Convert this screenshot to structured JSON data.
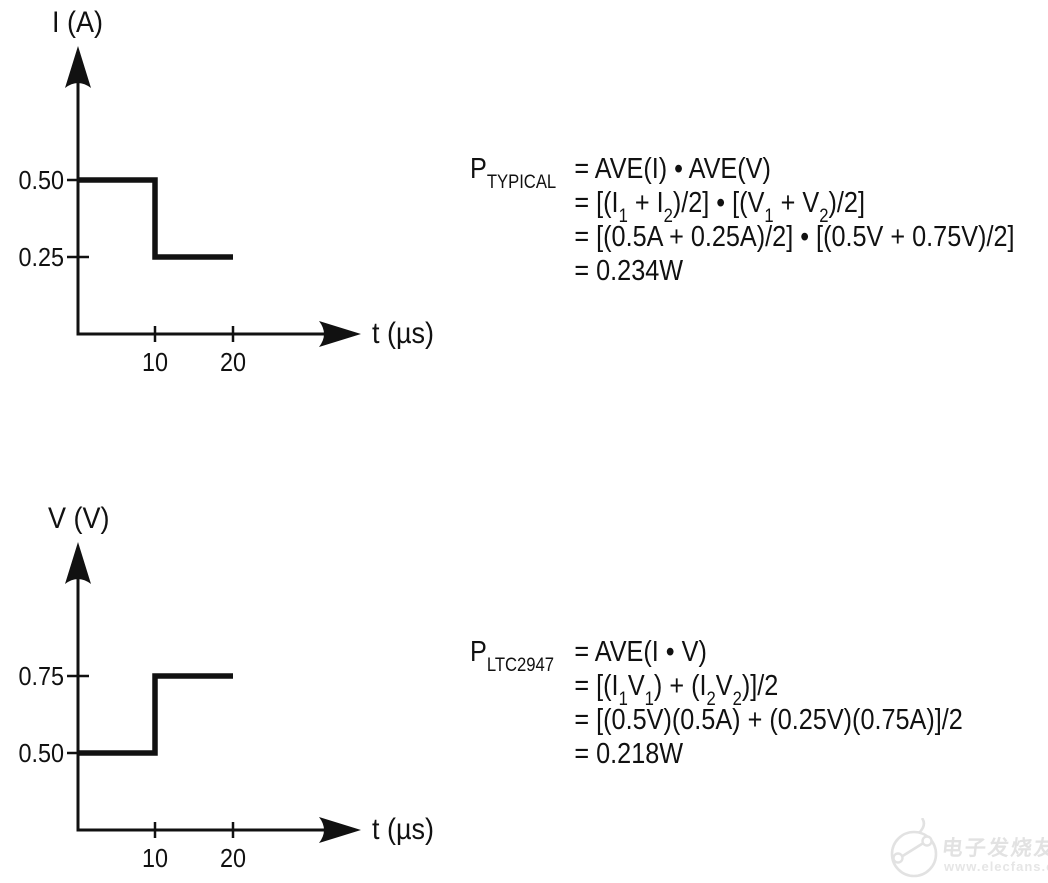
{
  "page": {
    "background": "#ffffff",
    "ink_color": "#111111"
  },
  "chart_data": [
    {
      "type": "line",
      "line_style": "step",
      "title": "",
      "ylabel": "I (A)",
      "xlabel": "t (µs)",
      "x": [
        0,
        10,
        10,
        20
      ],
      "y": [
        0.5,
        0.5,
        0.25,
        0.25
      ],
      "y_ticks": [
        {
          "value": 0.5,
          "label": "0.50"
        },
        {
          "value": 0.25,
          "label": "0.25"
        }
      ],
      "x_ticks": [
        {
          "value": 10,
          "label": "10"
        },
        {
          "value": 20,
          "label": "20"
        }
      ],
      "xlim": [
        0,
        36
      ],
      "grid": false,
      "legend": false
    },
    {
      "type": "line",
      "line_style": "step",
      "title": "",
      "ylabel": "V (V)",
      "xlabel": "t (µs)",
      "x": [
        0,
        10,
        10,
        20
      ],
      "y": [
        0.5,
        0.5,
        0.75,
        0.75
      ],
      "y_ticks": [
        {
          "value": 0.75,
          "label": "0.75"
        },
        {
          "value": 0.5,
          "label": "0.50"
        }
      ],
      "x_ticks": [
        {
          "value": 10,
          "label": "10"
        },
        {
          "value": 20,
          "label": "20"
        }
      ],
      "xlim": [
        0,
        36
      ],
      "grid": false,
      "legend": false
    }
  ],
  "equations": [
    {
      "name": "P_TYPICAL",
      "label": [
        [
          "t",
          "P"
        ],
        [
          "s",
          "TYPICAL"
        ]
      ],
      "lines": [
        [
          [
            "t",
            "= AVE(I) • AVE(V)"
          ]
        ],
        [
          [
            "t",
            "= [(I"
          ],
          [
            "s",
            "1"
          ],
          [
            "t",
            " + I"
          ],
          [
            "s",
            "2"
          ],
          [
            "t",
            ")/2] • [(V"
          ],
          [
            "s",
            "1"
          ],
          [
            "t",
            " + V"
          ],
          [
            "s",
            "2"
          ],
          [
            "t",
            ")/2]"
          ]
        ],
        [
          [
            "t",
            "= [(0.5A + 0.25A)/2] • [(0.5V + 0.75V)/2]"
          ]
        ],
        [
          [
            "t",
            "= 0.234W"
          ]
        ]
      ]
    },
    {
      "name": "P_LTC2947",
      "label": [
        [
          "t",
          "P"
        ],
        [
          "s",
          "LTC2947"
        ]
      ],
      "lines": [
        [
          [
            "t",
            "= AVE(I • V)"
          ]
        ],
        [
          [
            "t",
            "= [(I"
          ],
          [
            "s",
            "1"
          ],
          [
            "t",
            "V"
          ],
          [
            "s",
            "1"
          ],
          [
            "t",
            ") + (I"
          ],
          [
            "s",
            "2"
          ],
          [
            "t",
            "V"
          ],
          [
            "s",
            "2"
          ],
          [
            "t",
            ")]/2"
          ]
        ],
        [
          [
            "t",
            "= [(0.5V)(0.5A) + (0.25V)(0.75A)]/2"
          ]
        ],
        [
          [
            "t",
            "= 0.218W"
          ]
        ]
      ]
    }
  ],
  "watermark": {
    "logo": "elecfans-logo",
    "brand_text": "电子发烧友",
    "url_text": "www.elecfans.com",
    "color": "#e2e2e2"
  }
}
